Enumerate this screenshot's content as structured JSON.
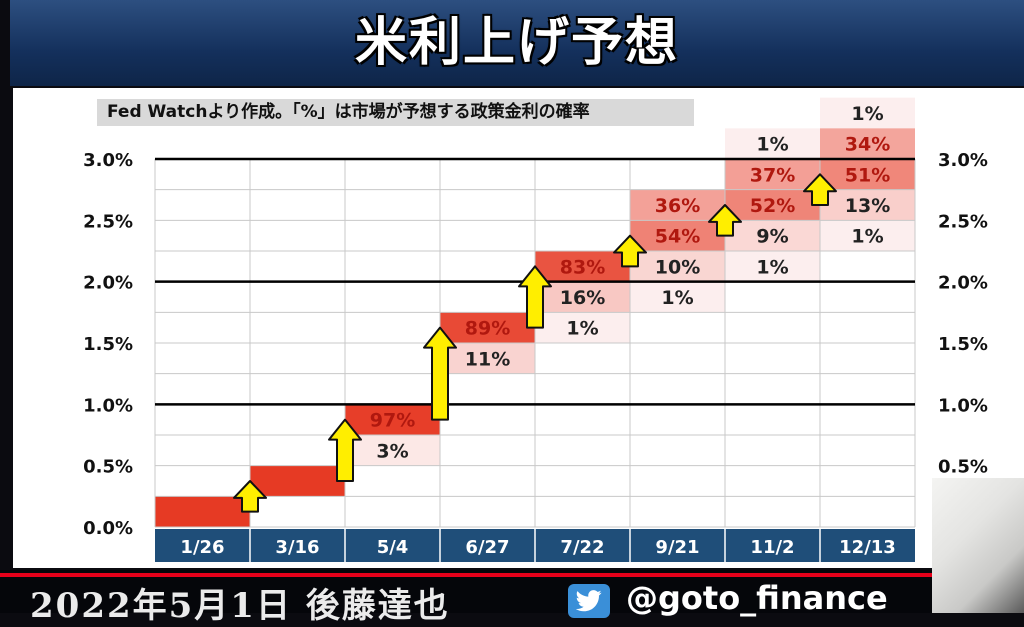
{
  "title": "米利上げ予想",
  "note": "Fed Watchより作成。「%」は市場が予想する政策金利の確率",
  "footer": {
    "date_name": "2022年5月1日 後藤達也",
    "handle": "@goto_finance"
  },
  "icons": {
    "twitter": "twitter-bird-icon"
  },
  "colors": {
    "title_bg": "#14305c",
    "axis_bar": "#1f4e79",
    "highest": "#e63a24",
    "up_arrow": "#ffee00"
  },
  "chart_data": {
    "type": "heatmap",
    "title": "米利上げ予想",
    "categories": [
      "1/26",
      "3/16",
      "5/4",
      "6/27",
      "7/22",
      "9/21",
      "11/2",
      "12/13"
    ],
    "y_labels": [
      "0.0%",
      "0.5%",
      "1.0%",
      "1.5%",
      "2.0%",
      "2.5%",
      "3.0%"
    ],
    "ylim": [
      0,
      3.25
    ],
    "y_step": 0.25,
    "bold_lines": [
      1.0,
      2.0,
      3.0
    ],
    "cells": [
      {
        "date": "1/26",
        "bucket": [
          0.0,
          0.25
        ],
        "label": ""
      },
      {
        "date": "3/16",
        "bucket": [
          0.25,
          0.5
        ],
        "label": ""
      },
      {
        "date": "5/4",
        "bucket": [
          0.75,
          1.0
        ],
        "label": "97%"
      },
      {
        "date": "5/4",
        "bucket": [
          0.5,
          0.75
        ],
        "label": "3%"
      },
      {
        "date": "6/27",
        "bucket": [
          1.5,
          1.75
        ],
        "label": "89%"
      },
      {
        "date": "6/27",
        "bucket": [
          1.25,
          1.5
        ],
        "label": "11%"
      },
      {
        "date": "7/22",
        "bucket": [
          2.0,
          2.25
        ],
        "label": "83%"
      },
      {
        "date": "7/22",
        "bucket": [
          1.75,
          2.0
        ],
        "label": "16%"
      },
      {
        "date": "7/22",
        "bucket": [
          1.5,
          1.75
        ],
        "label": "1%"
      },
      {
        "date": "9/21",
        "bucket": [
          2.5,
          2.75
        ],
        "label": "36%"
      },
      {
        "date": "9/21",
        "bucket": [
          2.25,
          2.5
        ],
        "label": "54%"
      },
      {
        "date": "9/21",
        "bucket": [
          2.0,
          2.25
        ],
        "label": "10%"
      },
      {
        "date": "9/21",
        "bucket": [
          1.75,
          2.0
        ],
        "label": "1%"
      },
      {
        "date": "11/2",
        "bucket": [
          3.0,
          3.25
        ],
        "label": "1%"
      },
      {
        "date": "11/2",
        "bucket": [
          2.75,
          3.0
        ],
        "label": "37%"
      },
      {
        "date": "11/2",
        "bucket": [
          2.5,
          2.75
        ],
        "label": "52%"
      },
      {
        "date": "11/2",
        "bucket": [
          2.25,
          2.5
        ],
        "label": "9%"
      },
      {
        "date": "11/2",
        "bucket": [
          2.0,
          2.25
        ],
        "label": "1%"
      },
      {
        "date": "12/13",
        "bucket": [
          3.25,
          3.5
        ],
        "label": "1%"
      },
      {
        "date": "12/13",
        "bucket": [
          3.0,
          3.25
        ],
        "label": "34%"
      },
      {
        "date": "12/13",
        "bucket": [
          2.75,
          3.0
        ],
        "label": "51%"
      },
      {
        "date": "12/13",
        "bucket": [
          2.5,
          2.75
        ],
        "label": "13%"
      },
      {
        "date": "12/13",
        "bucket": [
          2.25,
          2.5
        ],
        "label": "1%"
      }
    ],
    "arrows": [
      {
        "date": "3/16",
        "from": 0.125,
        "to": 0.375
      },
      {
        "date": "5/4",
        "from": 0.375,
        "to": 0.875
      },
      {
        "date": "6/27",
        "from": 0.875,
        "to": 1.625
      },
      {
        "date": "7/22",
        "from": 1.625,
        "to": 2.125
      },
      {
        "date": "9/21",
        "from": 2.125,
        "to": 2.375
      },
      {
        "date": "11/2",
        "from": 2.375,
        "to": 2.625
      },
      {
        "date": "12/13",
        "from": 2.625,
        "to": 2.875
      }
    ]
  }
}
